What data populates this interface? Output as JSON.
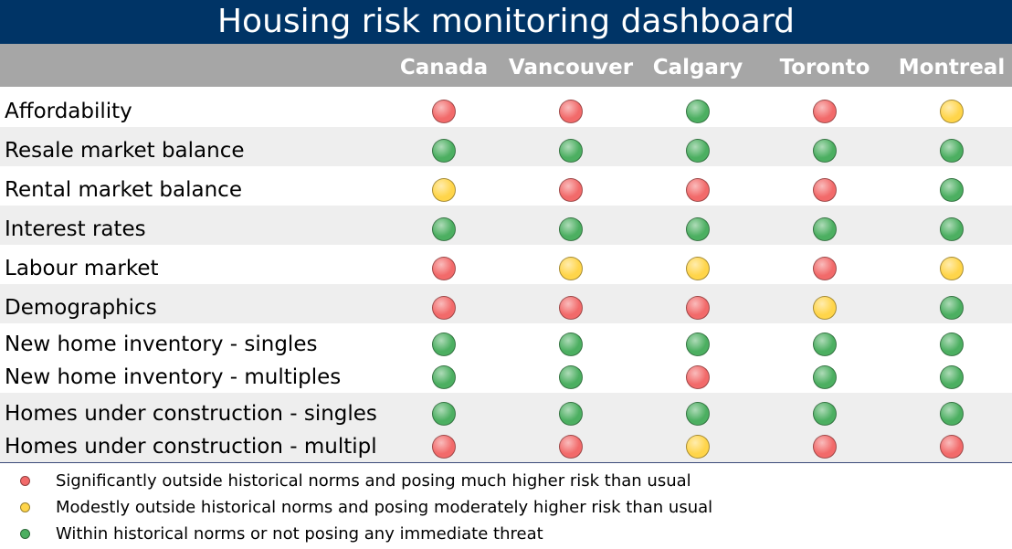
{
  "title": "Housing risk monitoring dashboard",
  "colors": {
    "red": "#f26a6a",
    "yellow": "#ffd54a",
    "green": "#4caf61",
    "title_bg": "#003466",
    "header_bg": "#a6a6a6",
    "row_shade": "#eeeeee"
  },
  "chart_data": {
    "type": "table",
    "title": "Housing risk monitoring dashboard",
    "columns": [
      "Canada",
      "Vancouver",
      "Calgary",
      "Toronto",
      "Montreal"
    ],
    "rows": [
      {
        "label": "Affordability",
        "values": [
          "red",
          "red",
          "green",
          "red",
          "yellow"
        ]
      },
      {
        "label": "Resale market balance",
        "values": [
          "green",
          "green",
          "green",
          "green",
          "green"
        ]
      },
      {
        "label": "Rental market balance",
        "values": [
          "yellow",
          "red",
          "red",
          "red",
          "green"
        ]
      },
      {
        "label": "Interest rates",
        "values": [
          "green",
          "green",
          "green",
          "green",
          "green"
        ]
      },
      {
        "label": "Labour market",
        "values": [
          "red",
          "yellow",
          "yellow",
          "red",
          "yellow"
        ]
      },
      {
        "label": "Demographics",
        "values": [
          "red",
          "red",
          "red",
          "yellow",
          "green"
        ]
      },
      {
        "label": "New home inventory - singles",
        "values": [
          "green",
          "green",
          "green",
          "green",
          "green"
        ]
      },
      {
        "label": "New home inventory - multiples",
        "values": [
          "green",
          "green",
          "red",
          "green",
          "green"
        ]
      },
      {
        "label": "Homes under construction - singles",
        "values": [
          "green",
          "green",
          "green",
          "green",
          "green"
        ]
      },
      {
        "label": "Homes under construction - multipl",
        "values": [
          "red",
          "red",
          "yellow",
          "red",
          "red"
        ]
      }
    ],
    "legend": [
      {
        "color": "red",
        "text": "Significantly outside historical norms and posing much higher risk than usual"
      },
      {
        "color": "yellow",
        "text": "Modestly outside historical norms and posing moderately higher risk than usual"
      },
      {
        "color": "green",
        "text": "Within historical norms or not posing any immediate threat"
      }
    ]
  }
}
